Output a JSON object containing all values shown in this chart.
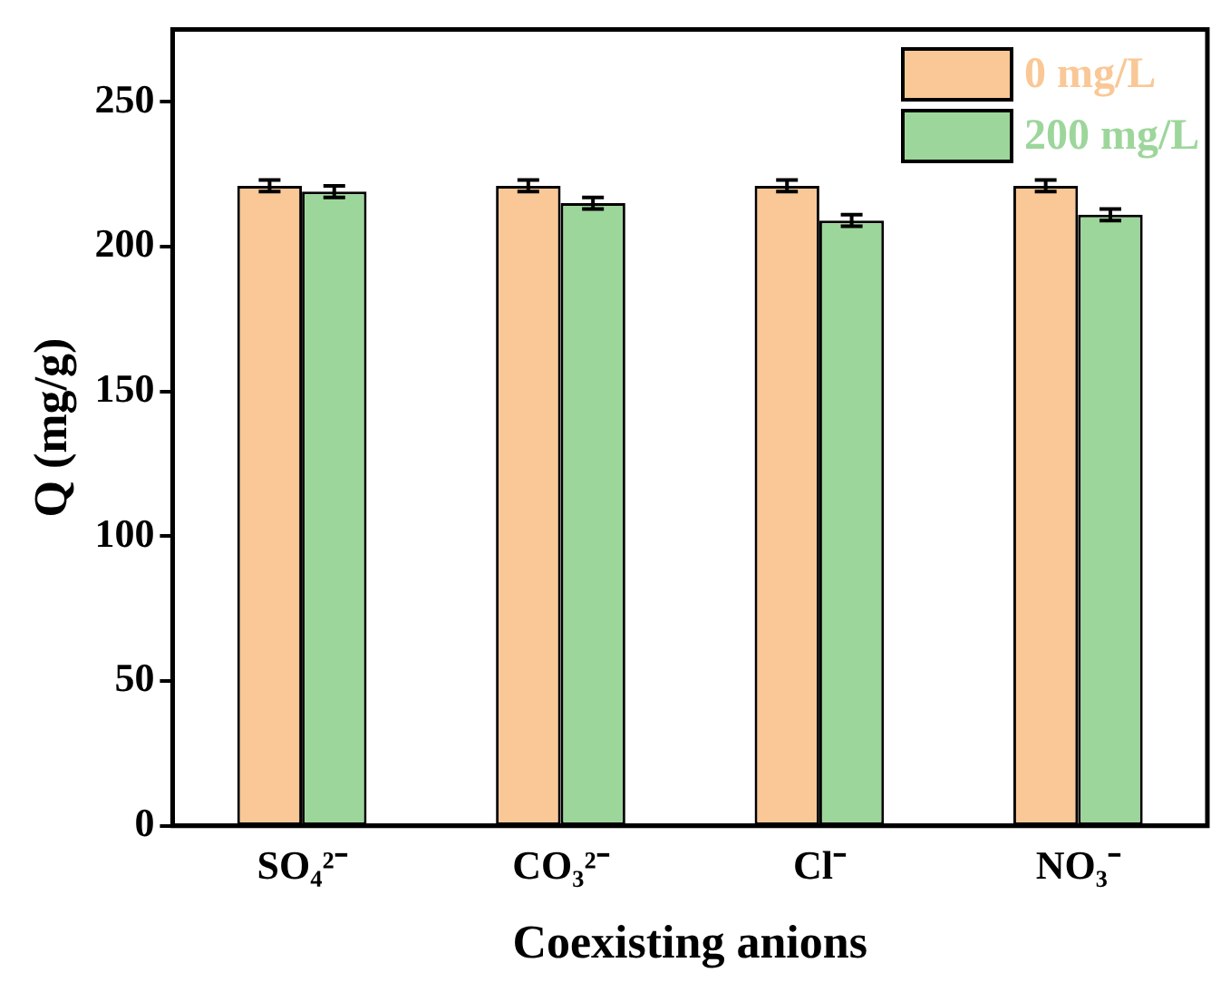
{
  "chart_data": {
    "type": "bar",
    "xlabel": "Coexisting anions",
    "ylabel": "Q (mg/g)",
    "categories": [
      "SO₄²⁻",
      "CO₃²⁻",
      "Cl⁻",
      "NO₃⁻"
    ],
    "series": [
      {
        "name": "0 mg/L",
        "color": "#f9c896",
        "values": [
          221,
          221,
          221,
          221
        ],
        "errors": [
          2,
          2,
          2,
          2
        ]
      },
      {
        "name": "200 mg/L",
        "color": "#9dd69b",
        "values": [
          219,
          215,
          209,
          211
        ],
        "errors": [
          2,
          2,
          2,
          2
        ]
      }
    ],
    "ylim": [
      0,
      275
    ],
    "yticks": [
      0,
      50,
      100,
      150,
      200,
      250
    ],
    "grid": false,
    "legend": "top right"
  }
}
